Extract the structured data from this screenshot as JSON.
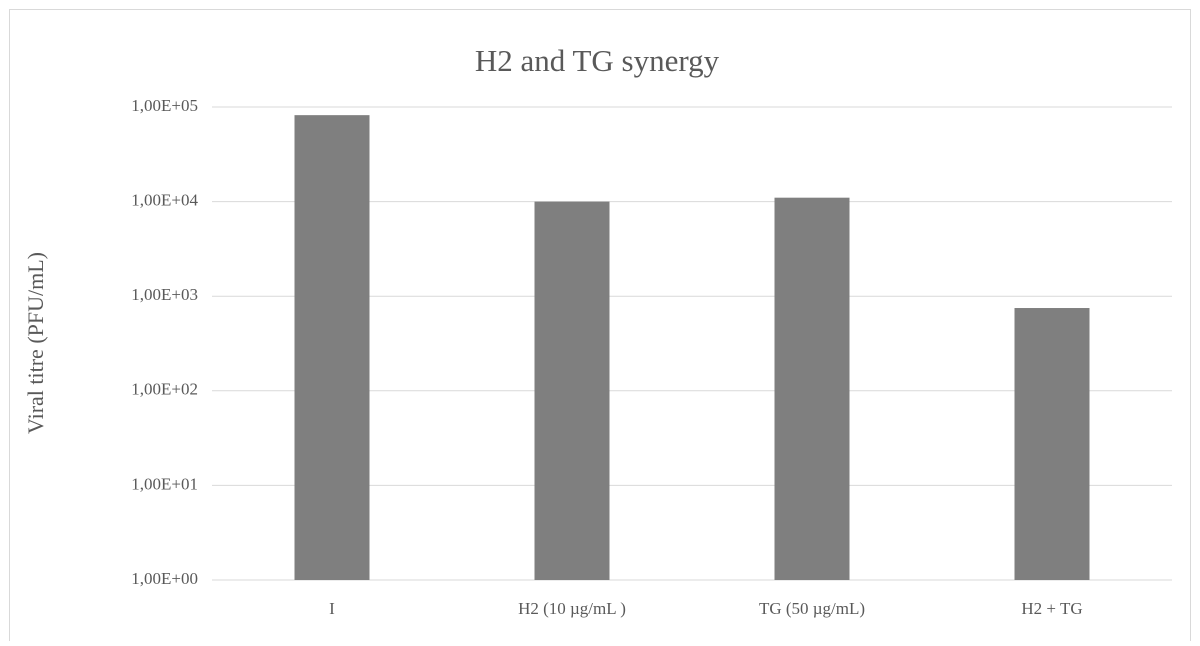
{
  "chart_data": {
    "type": "bar",
    "title": "H2 and TG synergy",
    "y_label": "Viral titre (PFU/mL)",
    "categories": [
      "I",
      "H2 (10  µg/mL )",
      "TG  (50  µg/mL)",
      "H2 + TG"
    ],
    "values": [
      82000,
      10000,
      11000,
      750
    ],
    "color": "#7f7f7f",
    "log_scale": true,
    "ylim": [
      1,
      100000
    ],
    "yticks": [
      {
        "value": 1,
        "label": "1,00E+00"
      },
      {
        "value": 10,
        "label": "1,00E+01"
      },
      {
        "value": 100,
        "label": "1,00E+02"
      },
      {
        "value": 1000,
        "label": "1,00E+03"
      },
      {
        "value": 10000,
        "label": "1,00E+04"
      },
      {
        "value": 100000,
        "label": "1,00E+05"
      }
    ],
    "grid": true
  }
}
